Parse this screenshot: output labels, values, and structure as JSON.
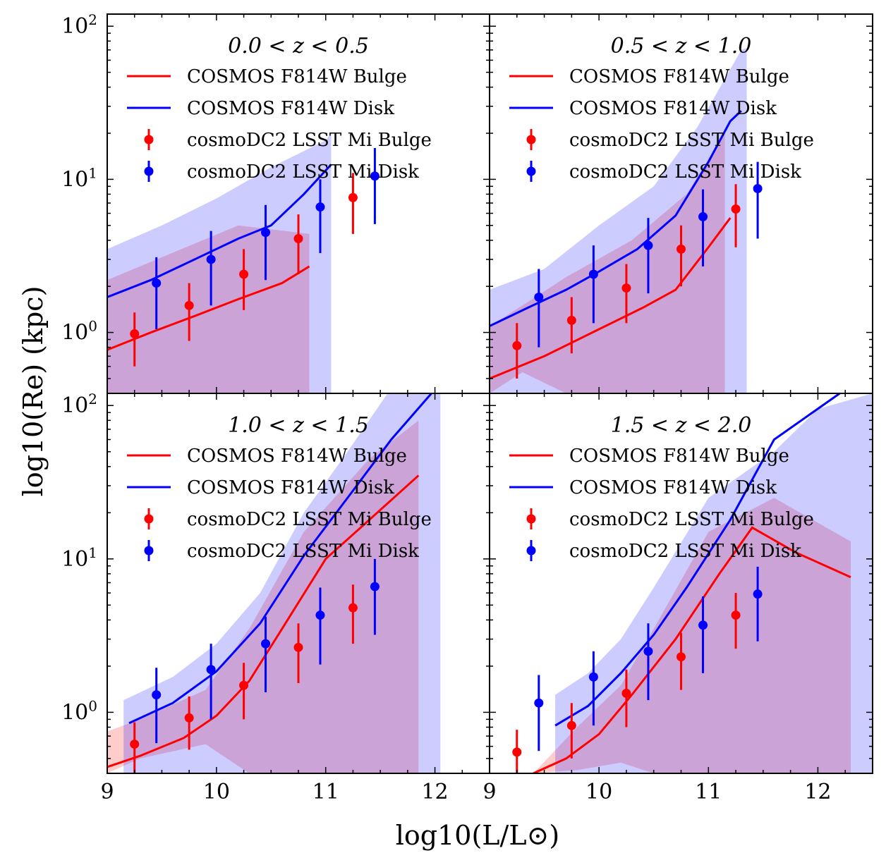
{
  "figure": {
    "xlabel": "log10(L/L⊙)",
    "ylabel": "log10(Re) (kpc)"
  },
  "colors": {
    "bulge": "#ff0000",
    "disk": "#0000ff",
    "bulge_fill": "rgba(255,0,0,0.2)",
    "disk_fill": "rgba(0,0,255,0.2)"
  },
  "legend": {
    "cosmos_bulge": "COSMOS F814W Bulge",
    "cosmos_disk": "COSMOS F814W Disk",
    "dc2_bulge": "cosmoDC2 LSST Mi Bulge",
    "dc2_disk": "cosmoDC2 LSST Mi Disk"
  },
  "chart_data": [
    {
      "type": "line",
      "title": "0.0 < z < 0.5",
      "xlim": [
        9,
        12.5
      ],
      "ylim": [
        0.4,
        120
      ],
      "xticks": [
        "9",
        "10",
        "11",
        "12"
      ],
      "yticks": [
        "10^0",
        "10^1",
        "10^2"
      ],
      "series": [
        {
          "name": "COSMOS F814W Bulge",
          "kind": "line",
          "x": [
            9.0,
            9.4,
            9.8,
            10.2,
            10.6,
            10.85
          ],
          "y": [
            0.77,
            1.0,
            1.28,
            1.65,
            2.1,
            2.7
          ]
        },
        {
          "name": "COSMOS F814W Disk",
          "kind": "line",
          "x": [
            9.0,
            9.4,
            9.8,
            10.2,
            10.5,
            10.8,
            11.05
          ],
          "y": [
            1.7,
            2.2,
            3.0,
            4.1,
            5.0,
            8.0,
            12.5
          ]
        },
        {
          "name": "COSMOS F814W Bulge band",
          "kind": "band",
          "x": [
            9.0,
            10.2,
            10.85
          ],
          "lo": [
            0.4,
            0.4,
            0.4
          ],
          "hi": [
            2.2,
            5.0,
            4.4
          ]
        },
        {
          "name": "COSMOS F814W Disk band",
          "kind": "band",
          "x": [
            9.0,
            9.5,
            10.0,
            10.5,
            11.0,
            11.05
          ],
          "lo": [
            0.4,
            0.4,
            0.4,
            0.4,
            0.4,
            0.4
          ],
          "hi": [
            3.5,
            5.0,
            7.5,
            12.0,
            18.0,
            20.0
          ]
        },
        {
          "name": "cosmoDC2 LSST Mi Bulge",
          "kind": "errorbar",
          "x": [
            9.25,
            9.75,
            10.25,
            10.75,
            11.25
          ],
          "y": [
            0.98,
            1.5,
            2.4,
            4.1,
            7.6
          ],
          "lo": [
            0.6,
            0.88,
            1.4,
            2.4,
            4.4
          ],
          "hi": [
            1.35,
            2.1,
            3.5,
            5.9,
            11.0
          ]
        },
        {
          "name": "cosmoDC2 LSST Mi Disk",
          "kind": "errorbar",
          "x": [
            9.45,
            9.95,
            10.45,
            10.95,
            11.45
          ],
          "y": [
            2.1,
            3.0,
            4.5,
            6.6,
            10.5
          ],
          "lo": [
            1.05,
            1.5,
            2.2,
            3.3,
            5.1
          ],
          "hi": [
            3.1,
            4.6,
            6.8,
            10.0,
            16.0
          ]
        }
      ]
    },
    {
      "type": "line",
      "title": "0.5 < z < 1.0",
      "xlim": [
        9,
        12.5
      ],
      "ylim": [
        0.4,
        120
      ],
      "xticks": [
        "9",
        "10",
        "11",
        "12"
      ],
      "yticks": [
        "10^0",
        "10^1",
        "10^2"
      ],
      "series": [
        {
          "name": "COSMOS F814W Bulge",
          "kind": "line",
          "x": [
            9.0,
            9.5,
            10.0,
            10.4,
            10.7,
            11.0,
            11.2
          ],
          "y": [
            0.5,
            0.7,
            1.05,
            1.45,
            1.9,
            3.6,
            5.6
          ]
        },
        {
          "name": "COSMOS F814W Disk",
          "kind": "line",
          "x": [
            9.0,
            9.35,
            9.7,
            10.0,
            10.35,
            10.7,
            11.0,
            11.2,
            11.3
          ],
          "y": [
            1.1,
            1.45,
            1.9,
            2.5,
            3.5,
            5.8,
            13.0,
            24.0,
            28.0
          ]
        },
        {
          "name": "COSMOS F814W Bulge band",
          "kind": "band",
          "x": [
            9.0,
            9.3,
            9.7,
            10.3,
            10.8,
            11.15
          ],
          "lo": [
            0.4,
            0.55,
            0.4,
            0.4,
            0.4,
            0.4
          ],
          "hi": [
            1.1,
            1.5,
            2.3,
            4.0,
            8.0,
            20.0
          ]
        },
        {
          "name": "COSMOS F814W Disk band",
          "kind": "band",
          "x": [
            9.0,
            9.5,
            10.0,
            10.5,
            10.9,
            11.3,
            11.35
          ],
          "lo": [
            0.4,
            0.4,
            0.4,
            0.4,
            0.4,
            0.4,
            0.4
          ],
          "hi": [
            1.9,
            2.6,
            5.0,
            9.0,
            22.0,
            70.0,
            72.0
          ]
        },
        {
          "name": "cosmoDC2 LSST Mi Bulge",
          "kind": "errorbar",
          "x": [
            9.25,
            9.75,
            10.25,
            10.75,
            11.25
          ],
          "y": [
            0.82,
            1.2,
            1.95,
            3.5,
            6.4
          ],
          "lo": [
            0.5,
            0.73,
            1.15,
            2.0,
            3.6
          ],
          "hi": [
            1.15,
            1.7,
            2.8,
            5.0,
            9.3
          ]
        },
        {
          "name": "cosmoDC2 LSST Mi Disk",
          "kind": "errorbar",
          "x": [
            9.45,
            9.95,
            10.45,
            10.95,
            11.45
          ],
          "y": [
            1.7,
            2.4,
            3.7,
            5.7,
            8.7
          ],
          "lo": [
            0.8,
            1.15,
            1.8,
            2.7,
            4.1
          ],
          "hi": [
            2.6,
            3.7,
            5.6,
            8.6,
            13.0
          ]
        }
      ]
    },
    {
      "type": "line",
      "title": "1.0 < z < 1.5",
      "xlim": [
        9,
        12.5
      ],
      "ylim": [
        0.4,
        120
      ],
      "xticks": [
        "9",
        "10",
        "11",
        "12"
      ],
      "yticks": [
        "10^0",
        "10^1",
        "10^2"
      ],
      "series": [
        {
          "name": "COSMOS F814W Bulge",
          "kind": "line",
          "x": [
            9.0,
            9.3,
            9.7,
            10.0,
            10.3,
            10.6,
            11.0,
            11.4,
            11.85
          ],
          "y": [
            0.44,
            0.52,
            0.68,
            0.95,
            1.6,
            3.5,
            10.0,
            18.0,
            35.0
          ]
        },
        {
          "name": "COSMOS F814W Disk",
          "kind": "line",
          "x": [
            9.2,
            9.6,
            10.0,
            10.4,
            10.8,
            11.2,
            11.6,
            12.05
          ],
          "y": [
            0.85,
            1.15,
            1.85,
            3.8,
            10.5,
            25.0,
            60.0,
            140.0
          ]
        },
        {
          "name": "COSMOS F814W Bulge band",
          "kind": "band",
          "x": [
            9.0,
            9.3,
            9.9,
            10.3,
            10.8,
            11.4,
            11.85
          ],
          "lo": [
            0.4,
            0.5,
            0.62,
            0.4,
            0.4,
            0.4,
            0.4
          ],
          "hi": [
            0.75,
            0.9,
            1.4,
            3.5,
            15.0,
            45.0,
            80.0
          ]
        },
        {
          "name": "COSMOS F814W Disk band",
          "kind": "band",
          "x": [
            9.15,
            9.6,
            10.0,
            10.4,
            10.8,
            11.2,
            11.6,
            12.05
          ],
          "lo": [
            0.4,
            0.4,
            0.4,
            0.4,
            0.4,
            0.4,
            0.4,
            0.4
          ],
          "hi": [
            1.2,
            1.7,
            2.8,
            6.0,
            20.0,
            50.0,
            130.0,
            200.0
          ]
        },
        {
          "name": "cosmoDC2 LSST Mi Bulge",
          "kind": "errorbar",
          "x": [
            9.25,
            9.75,
            10.25,
            10.75,
            11.25
          ],
          "y": [
            0.62,
            0.92,
            1.5,
            2.65,
            4.8
          ],
          "lo": [
            0.4,
            0.57,
            0.9,
            1.55,
            2.8
          ],
          "hi": [
            0.86,
            1.27,
            2.1,
            3.8,
            6.8
          ]
        },
        {
          "name": "cosmoDC2 LSST Mi Disk",
          "kind": "errorbar",
          "x": [
            9.45,
            9.95,
            10.45,
            10.95,
            11.45
          ],
          "y": [
            1.3,
            1.9,
            2.8,
            4.3,
            6.6
          ],
          "lo": [
            0.63,
            0.9,
            1.35,
            2.05,
            3.2
          ],
          "hi": [
            1.95,
            2.8,
            4.2,
            6.5,
            10.0
          ]
        }
      ]
    },
    {
      "type": "line",
      "title": "1.5 < z < 2.0",
      "xlim": [
        9,
        12.5
      ],
      "ylim": [
        0.4,
        120
      ],
      "xticks": [
        "9",
        "10",
        "11",
        "12"
      ],
      "yticks": [
        "10^0",
        "10^1",
        "10^2"
      ],
      "series": [
        {
          "name": "COSMOS F814W Bulge",
          "kind": "line",
          "x": [
            9.4,
            9.7,
            10.0,
            10.3,
            10.7,
            11.1,
            11.4,
            11.8,
            12.3
          ],
          "y": [
            0.4,
            0.5,
            0.72,
            1.3,
            3.0,
            8.0,
            16.0,
            11.0,
            7.6
          ]
        },
        {
          "name": "COSMOS F814W Disk",
          "kind": "line",
          "x": [
            9.6,
            9.9,
            10.2,
            10.5,
            10.8,
            11.2,
            11.6,
            12.2
          ],
          "y": [
            0.82,
            1.1,
            1.8,
            3.2,
            6.5,
            18.0,
            60.0,
            120.0
          ]
        },
        {
          "name": "COSMOS F814W Bulge band",
          "kind": "band",
          "x": [
            9.4,
            9.8,
            10.2,
            10.5,
            11.0,
            11.6,
            12.3
          ],
          "lo": [
            0.4,
            0.42,
            0.47,
            0.4,
            0.4,
            0.4,
            0.4
          ],
          "hi": [
            0.4,
            0.8,
            1.5,
            3.5,
            15.0,
            25.0,
            13.0
          ]
        },
        {
          "name": "COSMOS F814W Disk band",
          "kind": "band",
          "x": [
            9.6,
            9.9,
            10.2,
            10.5,
            11.0,
            11.6,
            12.0,
            12.5
          ],
          "lo": [
            0.4,
            0.4,
            0.4,
            0.4,
            0.4,
            0.4,
            0.4,
            0.4
          ],
          "hi": [
            1.3,
            1.8,
            3.0,
            6.5,
            25.0,
            50.0,
            95.0,
            120.0
          ]
        },
        {
          "name": "cosmoDC2 LSST Mi Bulge",
          "kind": "errorbar",
          "x": [
            9.25,
            9.75,
            10.25,
            10.75,
            11.25
          ],
          "y": [
            0.55,
            0.82,
            1.33,
            2.3,
            4.3
          ],
          "lo": [
            0.35,
            0.5,
            0.8,
            1.4,
            2.6
          ],
          "hi": [
            0.77,
            1.15,
            1.9,
            3.3,
            6.0
          ]
        },
        {
          "name": "cosmoDC2 LSST Mi Disk",
          "kind": "errorbar",
          "x": [
            9.45,
            9.95,
            10.45,
            10.95,
            11.45
          ],
          "y": [
            1.15,
            1.7,
            2.5,
            3.7,
            5.9
          ],
          "lo": [
            0.56,
            0.82,
            1.2,
            1.8,
            2.9
          ],
          "hi": [
            1.75,
            2.5,
            3.8,
            5.7,
            8.9
          ]
        }
      ]
    }
  ]
}
